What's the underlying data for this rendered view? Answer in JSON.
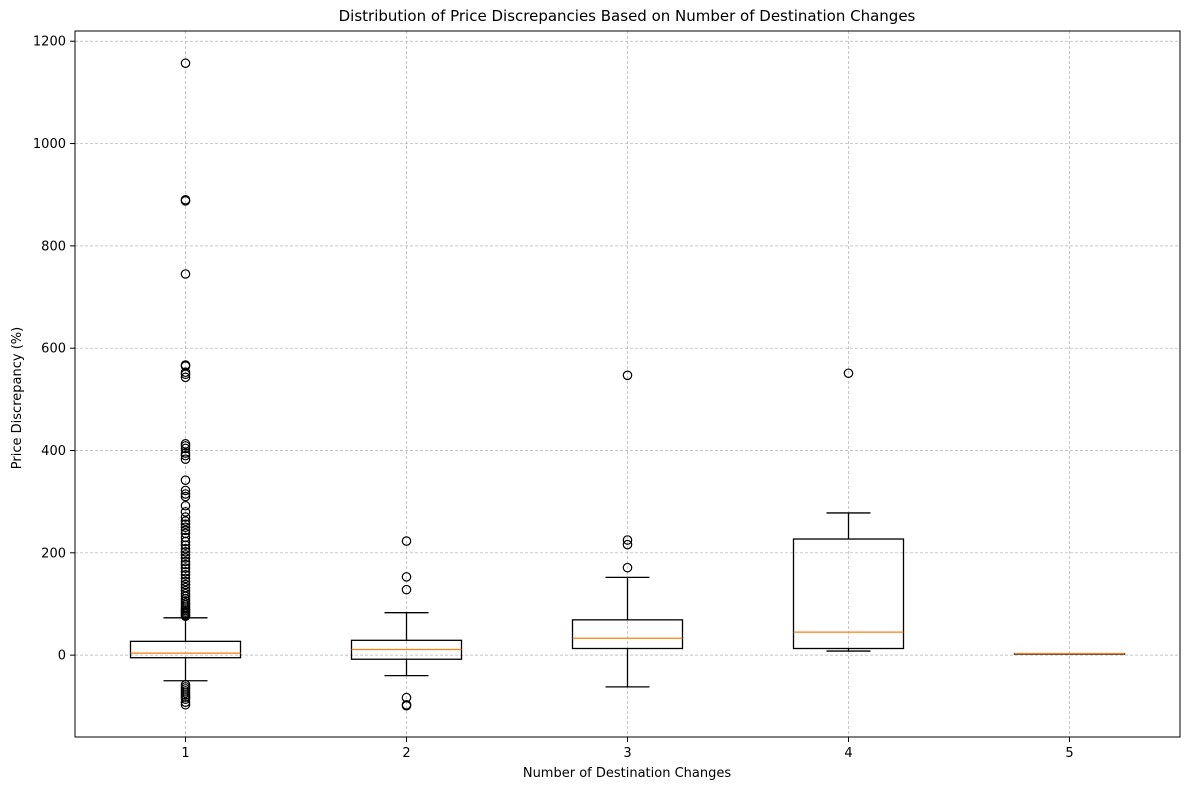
{
  "chart_data": {
    "type": "boxplot",
    "title": "Distribution of Price Discrepancies Based on Number of Destination Changes",
    "xlabel": "Number of Destination Changes",
    "ylabel": "Price Discrepancy (%)",
    "ylim": [
      -160,
      1220
    ],
    "yticks": [
      0,
      200,
      400,
      600,
      800,
      1000,
      1200
    ],
    "grid": true,
    "colors": {
      "box": "#000000",
      "median": "#ff7f0e",
      "grid": "#b0b0b0"
    },
    "categories": [
      "1",
      "2",
      "3",
      "4",
      "5"
    ],
    "boxes": [
      {
        "category": "1",
        "whisker_low": -50,
        "q1": -5,
        "median": 4,
        "q3": 27,
        "whisker_high": 73,
        "outliers": [
          1157,
          890,
          888,
          745,
          567,
          565,
          553,
          549,
          543,
          413,
          409,
          404,
          395,
          390,
          383,
          342,
          322,
          315,
          310,
          292,
          280,
          270,
          262,
          256,
          250,
          244,
          238,
          230,
          222,
          215,
          208,
          202,
          196,
          190,
          183,
          177,
          170,
          163,
          157,
          150,
          144,
          138,
          132,
          126,
          120,
          115,
          110,
          106,
          102,
          98,
          94,
          90,
          87,
          84,
          81,
          78,
          76,
          -58,
          -62,
          -66,
          -70,
          -74,
          -78,
          -82,
          -86,
          -92,
          -97
        ]
      },
      {
        "category": "2",
        "whisker_low": -40,
        "q1": -8,
        "median": 11,
        "q3": 29,
        "whisker_high": 83,
        "outliers": [
          223,
          153,
          128,
          -83,
          -97,
          -99
        ]
      },
      {
        "category": "3",
        "whisker_low": -62,
        "q1": 13,
        "median": 33,
        "q3": 69,
        "whisker_high": 152,
        "outliers": [
          547,
          225,
          216,
          171
        ]
      },
      {
        "category": "4",
        "whisker_low": 8,
        "q1": 13,
        "median": 45,
        "q3": 227,
        "whisker_high": 278,
        "outliers": [
          551
        ]
      },
      {
        "category": "5",
        "whisker_low": 3,
        "q1": 3,
        "median": 3,
        "q3": 3,
        "whisker_high": 3,
        "outliers": []
      }
    ]
  }
}
